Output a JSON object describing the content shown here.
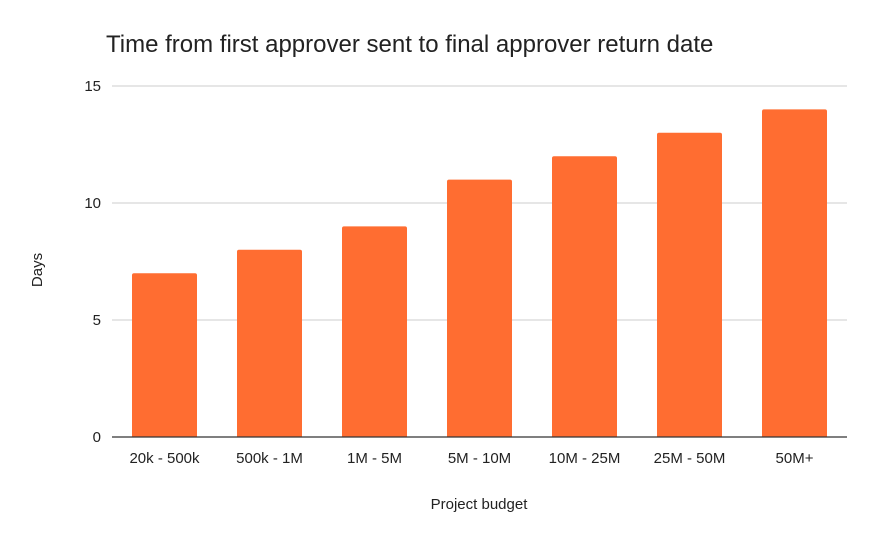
{
  "chart_data": {
    "type": "bar",
    "title": "Time from first approver sent to final approver return date",
    "xlabel": "Project budget",
    "ylabel": "Days",
    "categories": [
      "20k - 500k",
      "500k - 1M",
      "1M - 5M",
      "5M - 10M",
      "10M - 25M",
      "25M - 50M",
      "50M+"
    ],
    "values": [
      7,
      8,
      9,
      11,
      12,
      13,
      14
    ],
    "ylim": [
      0,
      15
    ],
    "yticks": [
      "0",
      "5",
      "10",
      "15"
    ],
    "grid": true,
    "legend": "none",
    "bar_color": "#ff6d31",
    "grid_color": "#cccccc",
    "axis_color": "#333333"
  }
}
